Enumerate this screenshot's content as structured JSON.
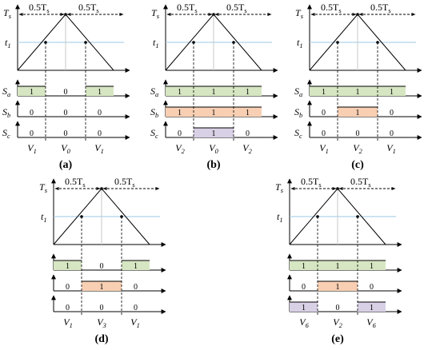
{
  "colors": {
    "green": "#d6e6c2",
    "orange": "#f8cfb3",
    "purple": "#d8d0e5",
    "blue_line": "#9cc7e4",
    "vertical_line": "#c8c8c8"
  },
  "panels": [
    {
      "caption": "(a)",
      "t1_label": "t",
      "t1_sub": "1",
      "ts_label": "T",
      "ts_sub": "s",
      "half_left": "0.5T",
      "half_right": "0.5T",
      "half_sub": "s",
      "signals": [
        {
          "name": "S",
          "sub": "a",
          "values": [
            "1",
            "0",
            "1"
          ],
          "highlight": [
            "green",
            null,
            "green"
          ]
        },
        {
          "name": "S",
          "sub": "b",
          "values": [
            "0",
            "0",
            "0"
          ],
          "highlight": [
            null,
            null,
            null
          ]
        },
        {
          "name": "S",
          "sub": "c",
          "values": [
            "0",
            "0",
            "0"
          ],
          "highlight": [
            null,
            null,
            null
          ]
        }
      ],
      "vectors": [
        {
          "name": "V",
          "sub": "1"
        },
        {
          "name": "V",
          "sub": "0"
        },
        {
          "name": "V",
          "sub": "1"
        }
      ]
    },
    {
      "caption": "(b)",
      "t1_label": "t",
      "t1_sub": "1",
      "ts_label": "T",
      "ts_sub": "s",
      "half_left": "0.5T",
      "half_right": "0.5T",
      "half_sub": "s",
      "signals": [
        {
          "name": "S",
          "sub": "a",
          "values": [
            "1",
            "1",
            "1"
          ],
          "highlight": [
            "green",
            "green",
            "green"
          ]
        },
        {
          "name": "S",
          "sub": "b",
          "values": [
            "1",
            "1",
            "1"
          ],
          "highlight": [
            "orange",
            "orange",
            "orange"
          ]
        },
        {
          "name": "S",
          "sub": "c",
          "values": [
            "0",
            "1",
            "0"
          ],
          "highlight": [
            null,
            "purple",
            null
          ]
        }
      ],
      "vectors": [
        {
          "name": "V",
          "sub": "2"
        },
        {
          "name": "V",
          "sub": "0"
        },
        {
          "name": "V",
          "sub": "2"
        }
      ]
    },
    {
      "caption": "(c)",
      "t1_label": "t",
      "t1_sub": "1",
      "ts_label": "T",
      "ts_sub": "s",
      "half_left": "0.5T",
      "half_right": "0.5T",
      "half_sub": "s",
      "signals": [
        {
          "name": "S",
          "sub": "a",
          "values": [
            "1",
            "1",
            "1"
          ],
          "highlight": [
            "green",
            "green",
            "green"
          ]
        },
        {
          "name": "S",
          "sub": "b",
          "values": [
            "0",
            "1",
            "0"
          ],
          "highlight": [
            null,
            "orange",
            null
          ]
        },
        {
          "name": "S",
          "sub": "c",
          "values": [
            "0",
            "0",
            "0"
          ],
          "highlight": [
            null,
            null,
            null
          ]
        }
      ],
      "vectors": [
        {
          "name": "V",
          "sub": "1"
        },
        {
          "name": "V",
          "sub": "2"
        },
        {
          "name": "V",
          "sub": "1"
        }
      ]
    },
    {
      "caption": "(d)",
      "t1_label": "t",
      "t1_sub": "1",
      "ts_label": "T",
      "ts_sub": "s",
      "half_left": "0.5T",
      "half_right": "0.5T",
      "half_sub": "s",
      "signals": [
        {
          "name": "",
          "sub": "",
          "values": [
            "1",
            "0",
            "1"
          ],
          "highlight": [
            "green",
            null,
            "green"
          ]
        },
        {
          "name": "",
          "sub": "",
          "values": [
            "0",
            "1",
            "0"
          ],
          "highlight": [
            null,
            "orange",
            null
          ]
        },
        {
          "name": "",
          "sub": "",
          "values": [
            "0",
            "0",
            "0"
          ],
          "highlight": [
            null,
            null,
            null
          ]
        }
      ],
      "vectors": [
        {
          "name": "V",
          "sub": "1"
        },
        {
          "name": "V",
          "sub": "3"
        },
        {
          "name": "V",
          "sub": "1"
        }
      ]
    },
    {
      "caption": "(e)",
      "t1_label": "t",
      "t1_sub": "1",
      "ts_label": "T",
      "ts_sub": "s",
      "half_left": "0.5T",
      "half_right": "0.5T",
      "half_sub": "s",
      "signals": [
        {
          "name": "",
          "sub": "",
          "values": [
            "1",
            "1",
            "1"
          ],
          "highlight": [
            "green",
            "green",
            "green"
          ]
        },
        {
          "name": "",
          "sub": "",
          "values": [
            "0",
            "1",
            "0"
          ],
          "highlight": [
            null,
            "orange",
            null
          ]
        },
        {
          "name": "",
          "sub": "",
          "values": [
            "1",
            "0",
            "1"
          ],
          "highlight": [
            "purple",
            null,
            "purple"
          ]
        }
      ],
      "vectors": [
        {
          "name": "V",
          "sub": "6"
        },
        {
          "name": "V",
          "sub": "2"
        },
        {
          "name": "V",
          "sub": "6"
        }
      ]
    }
  ]
}
